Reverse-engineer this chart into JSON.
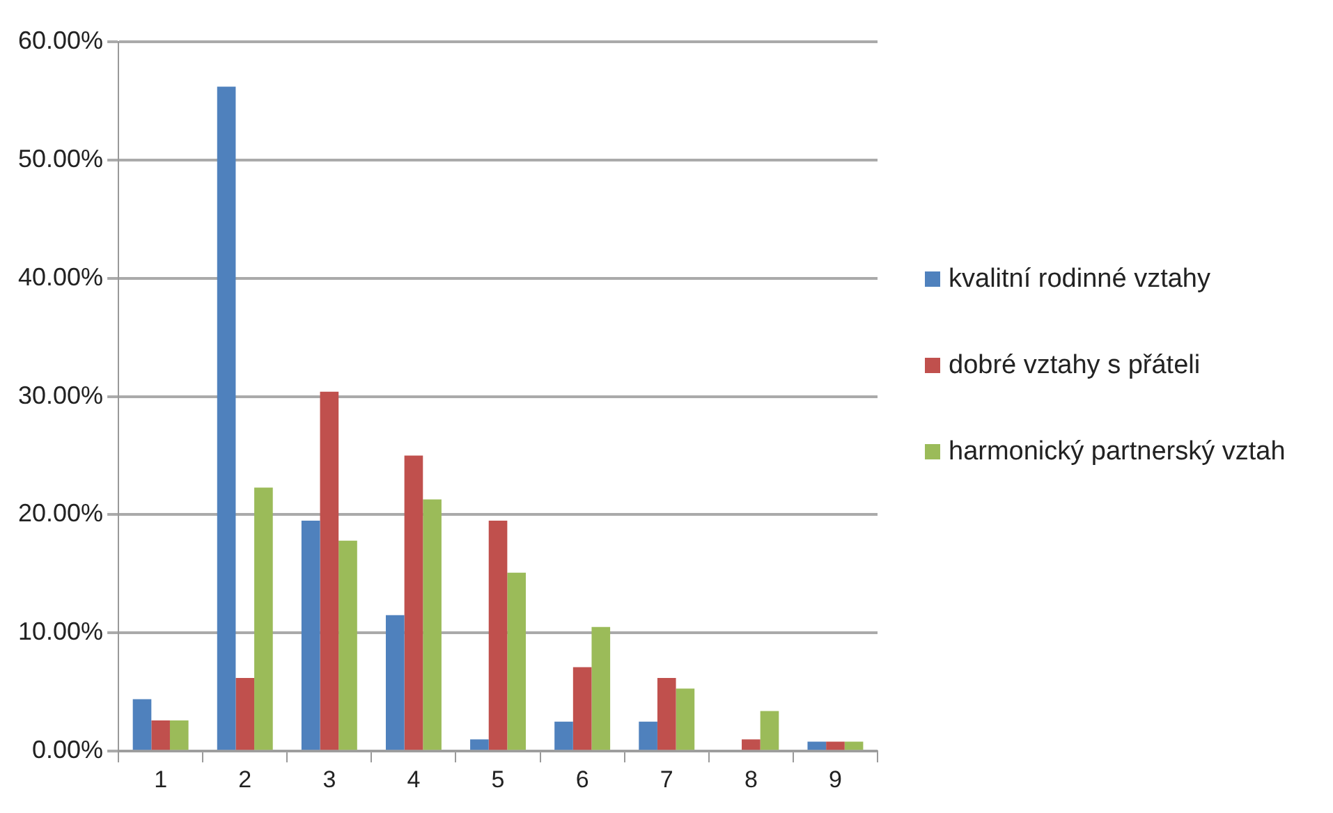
{
  "chart_data": {
    "type": "bar",
    "categories": [
      "1",
      "2",
      "3",
      "4",
      "5",
      "6",
      "7",
      "8",
      "9"
    ],
    "series": [
      {
        "name": "kvalitní rodinné vztahy",
        "color": "#4f81bd",
        "values": [
          4.4,
          56.2,
          19.5,
          11.5,
          1.0,
          2.5,
          2.5,
          0,
          0.8
        ]
      },
      {
        "name": "dobré vztahy s přáteli",
        "color": "#c0504d",
        "values": [
          2.6,
          6.2,
          30.4,
          25.0,
          19.5,
          7.1,
          6.2,
          1.0,
          0.8
        ]
      },
      {
        "name": "harmonický partnerský vztah",
        "color": "#9bbb59",
        "values": [
          2.6,
          22.3,
          17.8,
          21.3,
          15.1,
          10.5,
          5.3,
          3.4,
          0.8
        ]
      }
    ],
    "ylim": [
      0,
      60
    ],
    "yticks": [
      {
        "value": 0,
        "label": "0.00%"
      },
      {
        "value": 10,
        "label": "10.00%"
      },
      {
        "value": 20,
        "label": "20.00%"
      },
      {
        "value": 30,
        "label": "30.00%"
      },
      {
        "value": 40,
        "label": "40.00%"
      },
      {
        "value": 50,
        "label": "50.00%"
      },
      {
        "value": 60,
        "label": "60.00%"
      }
    ],
    "grid": "y",
    "legend": "right"
  }
}
